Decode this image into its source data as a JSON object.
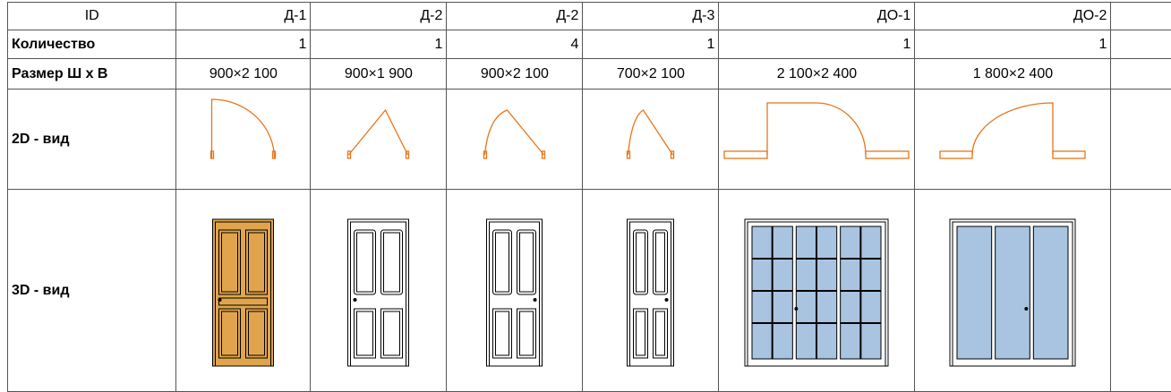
{
  "table": {
    "header": [
      "ID",
      "Д-1",
      "Д-2",
      "Д-2",
      "Д-3",
      "ДО-1",
      "ДО-2"
    ],
    "rows": [
      [
        "Количество",
        1,
        1,
        4,
        1,
        1,
        1
      ],
      [
        "Размер Ш х В",
        "900×2 100",
        "900×1 900",
        "900×2 100",
        "700×2 100",
        "2 100×2 400",
        "1 800×2 400"
      ],
      [
        "2D - вид"
      ],
      [
        "3D - вид"
      ]
    ]
  }
}
